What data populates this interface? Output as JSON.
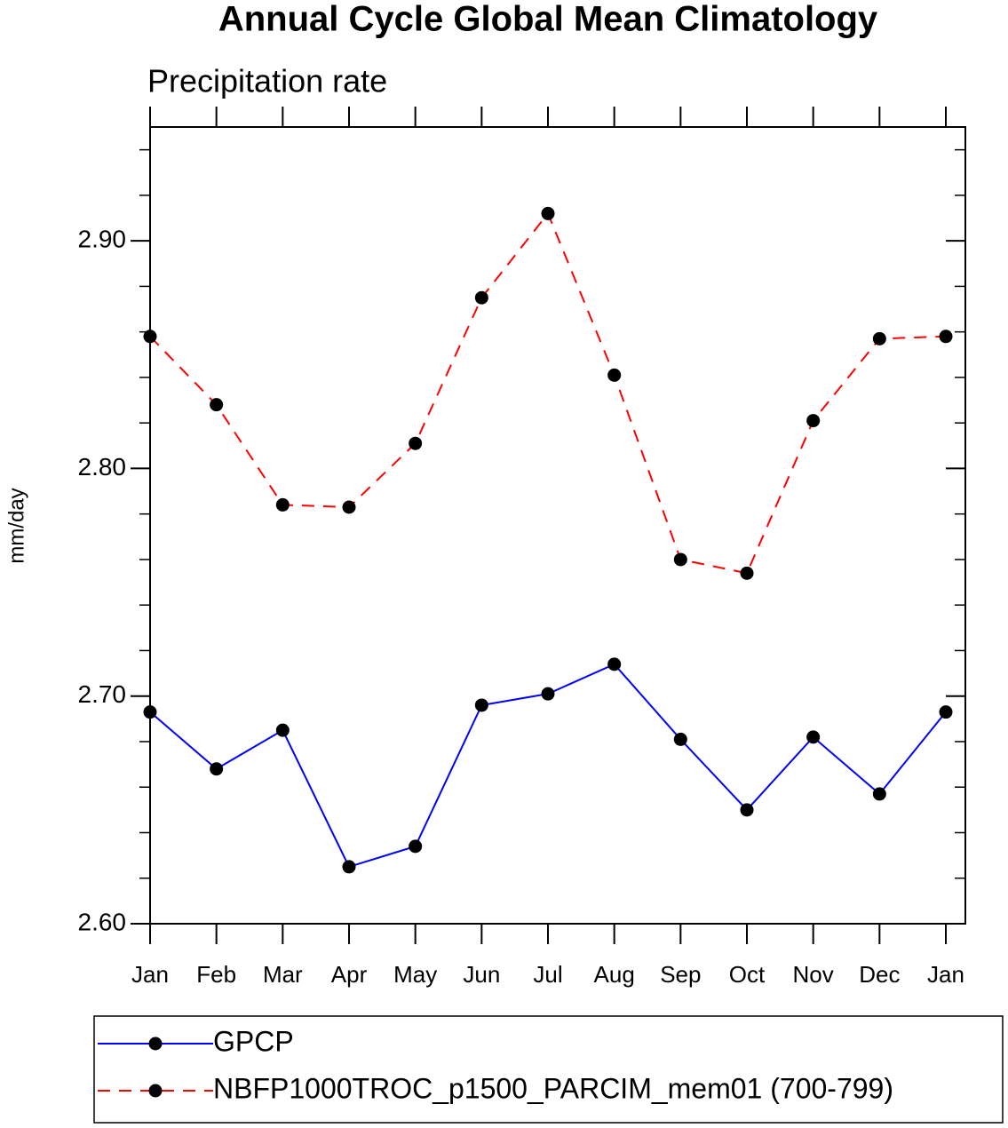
{
  "chart_data": {
    "type": "line",
    "title": "Annual Cycle Global Mean Climatology",
    "subtitle": "Precipitation rate",
    "y_label": "mm/day",
    "categories": [
      "Jan",
      "Feb",
      "Mar",
      "Apr",
      "May",
      "Jun",
      "Jul",
      "Aug",
      "Sep",
      "Oct",
      "Nov",
      "Dec",
      "Jan"
    ],
    "series": [
      {
        "name": "GPCP",
        "color": "#0000ff",
        "line_style": "solid",
        "values": [
          2.693,
          2.668,
          2.685,
          2.625,
          2.634,
          2.696,
          2.701,
          2.714,
          2.681,
          2.65,
          2.682,
          2.657,
          2.693
        ]
      },
      {
        "name": "NBFP1000TROC_p1500_PARCIM_mem01 (700-799)",
        "color": "#ff0000",
        "line_style": "dashed",
        "values": [
          2.858,
          2.828,
          2.784,
          2.783,
          2.811,
          2.875,
          2.912,
          2.841,
          2.76,
          2.754,
          2.821,
          2.857,
          2.858
        ]
      }
    ],
    "ylim": [
      2.6,
      2.95
    ],
    "yticks": [
      {
        "value": 2.6,
        "label": "2.60"
      },
      {
        "value": 2.7,
        "label": "2.70"
      },
      {
        "value": 2.8,
        "label": "2.80"
      },
      {
        "value": 2.9,
        "label": "2.90"
      }
    ],
    "yminorticks": [
      2.62,
      2.64,
      2.66,
      2.68,
      2.72,
      2.74,
      2.76,
      2.78,
      2.82,
      2.84,
      2.86,
      2.88,
      2.92,
      2.94
    ],
    "marker_color": "#000000",
    "legend": "bottom"
  }
}
